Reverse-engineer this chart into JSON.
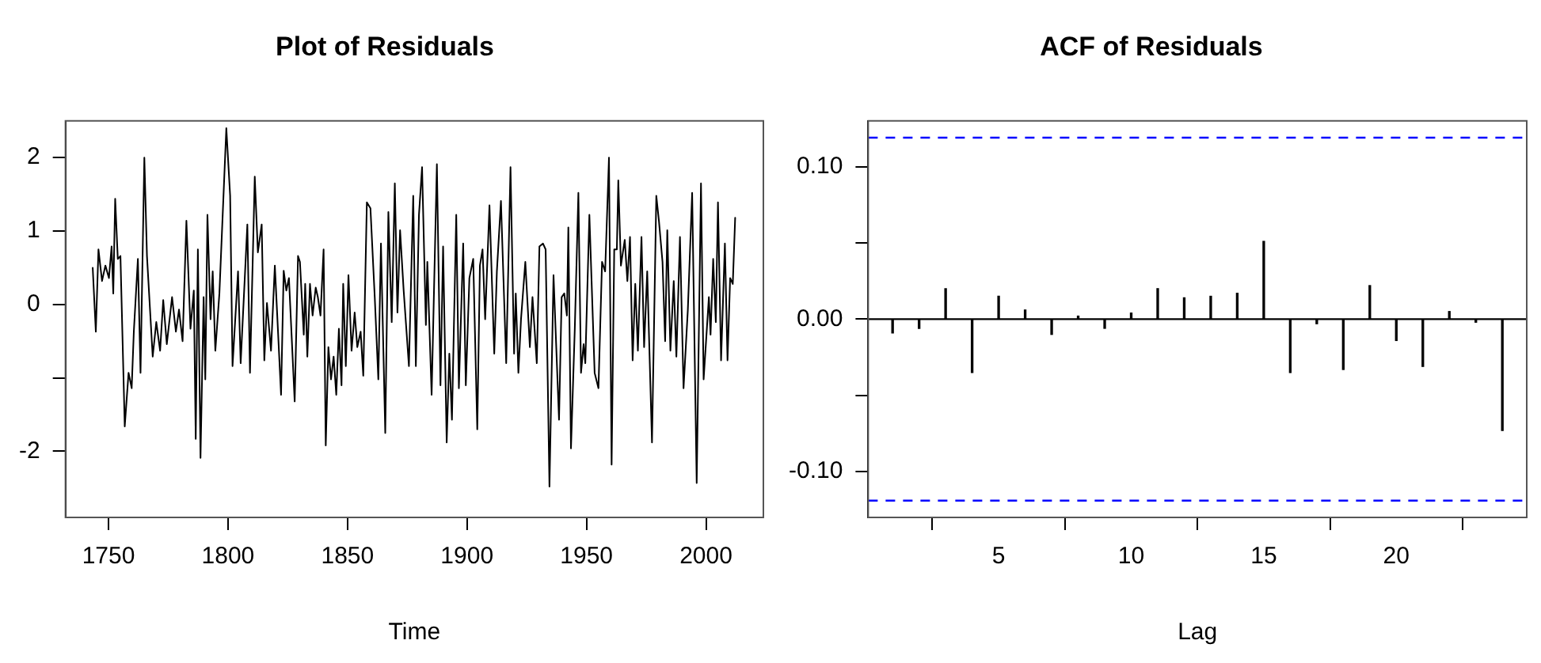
{
  "chart_data": [
    {
      "type": "line",
      "title": "Plot of Residuals",
      "xlabel": "Time",
      "xlim": [
        1732,
        2024
      ],
      "xticks": [
        1750,
        1800,
        1850,
        1900,
        1950,
        2000
      ],
      "ylim": [
        -2.9,
        2.5
      ],
      "yticks": [
        -2,
        {
          "value": -1,
          "label": null
        },
        0,
        1,
        2
      ],
      "grid": false,
      "legend": false,
      "series": [
        {
          "color": "#000000",
          "x": [
            1743.4,
            1744.7,
            1745.8,
            1747.3,
            1748.7,
            1750.2,
            1751.3,
            1752.0,
            1752.8,
            1753.9,
            1755.0,
            1756.8,
            1758.4,
            1759.7,
            1760.6,
            1762.3,
            1763.4,
            1765.0,
            1766.1,
            1768.5,
            1770.0,
            1771.6,
            1772.9,
            1774.4,
            1776.6,
            1778.2,
            1779.5,
            1781.0,
            1782.6,
            1784.3,
            1785.7,
            1786.5,
            1787.4,
            1788.5,
            1789.8,
            1790.5,
            1791.4,
            1792.7,
            1793.6,
            1794.7,
            1796.4,
            1799.3,
            1800.9,
            1801.9,
            1804.2,
            1805.3,
            1808.1,
            1809.2,
            1811.2,
            1812.5,
            1814.1,
            1815.2,
            1816.3,
            1818.0,
            1819.6,
            1822.2,
            1823.3,
            1824.4,
            1825.5,
            1827.9,
            1829.3,
            1830.1,
            1831.7,
            1832.3,
            1833.2,
            1834.3,
            1835.4,
            1836.7,
            1837.6,
            1838.7,
            1840.0,
            1840.9,
            1842.0,
            1843.1,
            1844.2,
            1845.3,
            1846.4,
            1847.5,
            1848.2,
            1849.3,
            1850.4,
            1851.7,
            1853.0,
            1854.1,
            1855.5,
            1856.6,
            1858.1,
            1859.6,
            1861.4,
            1862.9,
            1864.0,
            1865.8,
            1867.1,
            1868.5,
            1869.8,
            1870.9,
            1872.0,
            1873.5,
            1875.7,
            1877.5,
            1878.6,
            1879.9,
            1881.2,
            1882.8,
            1883.4,
            1885.2,
            1887.4,
            1888.9,
            1890.0,
            1891.5,
            1892.6,
            1893.7,
            1895.5,
            1896.6,
            1898.4,
            1899.5,
            1901.0,
            1902.6,
            1904.3,
            1905.4,
            1906.5,
            1907.6,
            1909.4,
            1911.4,
            1912.5,
            1914.2,
            1916.4,
            1918.2,
            1919.7,
            1920.4,
            1921.5,
            1922.6,
            1924.4,
            1926.3,
            1927.4,
            1929.2,
            1930.3,
            1931.8,
            1932.9,
            1934.5,
            1936.2,
            1938.5,
            1939.6,
            1940.7,
            1941.8,
            1942.4,
            1943.5,
            1945.1,
            1946.6,
            1947.7,
            1948.8,
            1949.5,
            1951.2,
            1953.4,
            1955.0,
            1956.5,
            1957.8,
            1959.4,
            1960.5,
            1961.6,
            1962.7,
            1963.3,
            1964.4,
            1966.0,
            1967.1,
            1968.2,
            1969.3,
            1970.4,
            1971.5,
            1973.0,
            1974.1,
            1975.4,
            1977.4,
            1979.2,
            1980.3,
            1981.8,
            1982.9,
            1983.8,
            1985.1,
            1986.5,
            1987.6,
            1989.1,
            1990.6,
            1992.4,
            1994.2,
            1996.1,
            1997.9,
            1999.0,
            2001.2,
            2001.9,
            2003.0,
            2004.1,
            2005.0,
            2006.3,
            2007.9,
            2009.0,
            2010.1,
            2011.2,
            2012.2
          ],
          "values": [
            0.5,
            -0.37,
            0.75,
            0.32,
            0.53,
            0.36,
            0.79,
            0.15,
            1.44,
            0.62,
            0.66,
            -1.66,
            -0.93,
            -1.14,
            -0.37,
            0.62,
            -0.93,
            2.0,
            0.66,
            -0.71,
            -0.24,
            -0.63,
            0.06,
            -0.54,
            0.1,
            -0.37,
            -0.07,
            -0.5,
            1.14,
            -0.33,
            0.19,
            -1.83,
            0.75,
            -2.09,
            0.1,
            -1.02,
            1.22,
            -0.2,
            0.45,
            -0.63,
            0.15,
            2.4,
            1.48,
            -0.84,
            0.45,
            -0.8,
            1.09,
            -0.93,
            1.74,
            0.71,
            1.09,
            -0.76,
            0.02,
            -0.63,
            0.53,
            -1.23,
            0.46,
            0.19,
            0.36,
            -1.32,
            0.66,
            0.58,
            -0.41,
            0.28,
            -0.71,
            0.28,
            -0.15,
            0.23,
            0.1,
            -0.15,
            0.75,
            -1.92,
            -0.58,
            -1.02,
            -0.71,
            -1.23,
            -0.33,
            -1.1,
            0.28,
            -0.84,
            0.4,
            -0.63,
            -0.11,
            -0.58,
            -0.37,
            -0.97,
            1.39,
            1.31,
            0.1,
            -1.02,
            0.83,
            -1.75,
            1.26,
            -0.24,
            1.65,
            -0.11,
            1.01,
            0.19,
            -0.84,
            1.48,
            -0.84,
            1.22,
            1.87,
            -0.28,
            0.58,
            -1.23,
            1.91,
            -1.1,
            0.79,
            -1.88,
            -0.67,
            -1.57,
            1.22,
            -1.14,
            0.83,
            -1.1,
            0.36,
            0.62,
            -1.7,
            0.53,
            0.75,
            -0.2,
            1.35,
            -0.67,
            0.45,
            1.41,
            -0.8,
            1.87,
            -0.67,
            0.15,
            -0.93,
            -0.2,
            0.58,
            -0.58,
            0.1,
            -0.8,
            0.79,
            0.83,
            0.75,
            -2.48,
            0.4,
            -1.57,
            0.1,
            0.15,
            -0.15,
            1.05,
            -1.96,
            -0.33,
            1.52,
            -0.93,
            -0.54,
            -0.8,
            1.22,
            -0.93,
            -1.14,
            0.58,
            0.45,
            2.0,
            -2.18,
            0.75,
            0.75,
            1.69,
            0.53,
            0.88,
            0.32,
            0.92,
            -0.76,
            0.28,
            -0.63,
            0.92,
            -0.58,
            0.45,
            -1.88,
            1.48,
            1.14,
            0.58,
            -0.5,
            1.01,
            -0.63,
            0.32,
            -0.71,
            0.92,
            -1.14,
            -0.07,
            1.52,
            -2.43,
            1.65,
            -1.02,
            0.1,
            -0.41,
            0.62,
            -0.24,
            1.39,
            -0.76,
            0.83,
            -0.76,
            0.36,
            0.28,
            1.18
          ]
        }
      ]
    },
    {
      "type": "bar",
      "title": "ACF of Residuals",
      "xlabel": "Lag",
      "xlim": [
        0.08,
        24.92
      ],
      "xticks": [
        5,
        10,
        15,
        20
      ],
      "ylim": [
        -0.13,
        0.13
      ],
      "yticks": [
        {
          "value": -0.1,
          "label": "-0.10"
        },
        {
          "value": -0.05,
          "label": null
        },
        {
          "value": 0,
          "label": "0.00"
        },
        {
          "value": 0.05,
          "label": null
        },
        {
          "value": 0.1,
          "label": "0.10"
        }
      ],
      "grid": false,
      "legend": false,
      "x": [
        1,
        2,
        3,
        4,
        5,
        6,
        7,
        8,
        9,
        10,
        11,
        12,
        13,
        14,
        15,
        16,
        17,
        18,
        19,
        20,
        21,
        22,
        23,
        24
      ],
      "series": [
        {
          "color": "#000000",
          "values": [
            -0.009,
            -0.006,
            0.02,
            -0.035,
            0.015,
            0.006,
            -0.01,
            0.002,
            -0.006,
            0.004,
            0.02,
            0.014,
            0.015,
            0.017,
            0.051,
            -0.035,
            -0.003,
            -0.033,
            0.022,
            -0.014,
            -0.031,
            0.005,
            -0.002,
            -0.073
          ]
        }
      ],
      "ref_lines": [
        {
          "axis": "y",
          "value": 0.119,
          "color": "#0000ff",
          "line_style": "dashed"
        },
        {
          "axis": "y",
          "value": -0.119,
          "color": "#0000ff",
          "line_style": "dashed"
        },
        {
          "axis": "y",
          "value": 0,
          "color": "#000000",
          "line_style": "solid"
        }
      ]
    }
  ]
}
